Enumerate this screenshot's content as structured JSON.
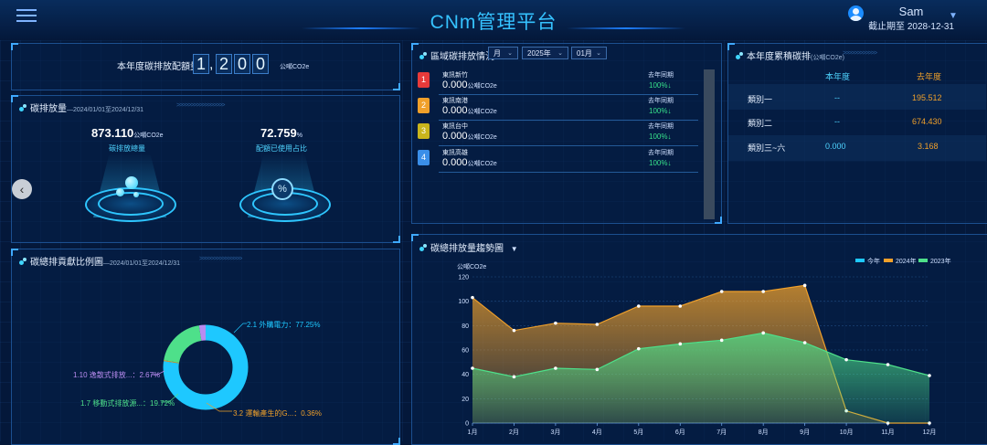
{
  "header": {
    "title": "CNm管理平台",
    "user_name": "Sam",
    "expiry": "截止期至 2028-12-31"
  },
  "quota": {
    "label": "本年度碳排放配額量",
    "digits": [
      "1",
      "2",
      "0",
      "0"
    ],
    "unit": "公噸CO2e"
  },
  "emission": {
    "title": "碳排放量",
    "period": "—2024/01/01至2024/12/31",
    "total_value": "873.110",
    "total_unit": "公噸CO2e",
    "total_caption": "碳排放總量",
    "pct_value": "72.759",
    "pct_unit": "%",
    "pct_caption": "配額已使用占比"
  },
  "region": {
    "title": "區域碳排放情況",
    "selects": {
      "period": "月",
      "year": "2025年",
      "month": "01月"
    },
    "rows": [
      {
        "rank": "1",
        "name": "東訊新竹",
        "value": "0.000",
        "unit": "公噸CO2e",
        "last_label": "去年同期",
        "pct": "100%↓",
        "color": "#e83a3a"
      },
      {
        "rank": "2",
        "name": "東訊南港",
        "value": "0.000",
        "unit": "公噸CO2e",
        "last_label": "去年同期",
        "pct": "100%↓",
        "color": "#f0a02a"
      },
      {
        "rank": "3",
        "name": "東訊台中",
        "value": "0.000",
        "unit": "公噸CO2e",
        "last_label": "去年同期",
        "pct": "100%↓",
        "color": "#c9b51c"
      },
      {
        "rank": "4",
        "name": "東訊高雄",
        "value": "0.000",
        "unit": "公噸CO2e",
        "last_label": "去年同期",
        "pct": "100%↓",
        "color": "#3a8ee8"
      }
    ]
  },
  "annual": {
    "title": "本年度累積碳排",
    "unit": "(公噸CO2e)",
    "col_current": "本年度",
    "col_last": "去年度",
    "rows": [
      {
        "label": "類別一",
        "current": "--",
        "last": "195.512"
      },
      {
        "label": "類別二",
        "current": "--",
        "last": "674.430"
      },
      {
        "label": "類別三~六",
        "current": "0.000",
        "last": "3.168"
      }
    ]
  },
  "contribution": {
    "title": "碳總排貢獻比例圖",
    "period": "—2024/01/01至2024/12/31",
    "chart_data": {
      "type": "pie",
      "slices": [
        {
          "label": "2.1 外購電力：77.25%",
          "value": 77.25,
          "color": "#1ec8ff"
        },
        {
          "label": "3.2 運輸產生的G...：0.36%",
          "value": 0.36,
          "color": "#f0a02a"
        },
        {
          "label": "1.7 移動式排放源...：19.72%",
          "value": 19.72,
          "color": "#4ee08a"
        },
        {
          "label": "1.10 逸散式排放...：2.67%",
          "value": 2.67,
          "color": "#b98cf0"
        }
      ]
    }
  },
  "trend": {
    "title": "碳總排放量趨勢圖",
    "chart_data": {
      "type": "area",
      "ylabel": "公噸CO2e",
      "categories": [
        "1月",
        "2月",
        "3月",
        "4月",
        "5月",
        "6月",
        "7月",
        "8月",
        "9月",
        "10月",
        "11月",
        "12月"
      ],
      "ylim": [
        0,
        120
      ],
      "yticks": [
        "0",
        "20",
        "40",
        "60",
        "80",
        "100",
        "120"
      ],
      "legend_position": "top-right",
      "series": [
        {
          "name": "今年",
          "color": "#1ec8ff",
          "values": [
            null,
            null,
            null,
            null,
            null,
            null,
            null,
            null,
            null,
            null,
            null,
            null
          ]
        },
        {
          "name": "2024年",
          "color": "#f0a02a",
          "values": [
            103,
            76,
            82,
            81,
            96,
            96,
            108,
            108,
            113,
            10,
            0,
            0
          ]
        },
        {
          "name": "2023年",
          "color": "#4ee08a",
          "values": [
            45,
            38,
            45,
            44,
            61,
            65,
            68,
            74,
            66,
            52,
            48,
            39
          ]
        }
      ]
    }
  }
}
